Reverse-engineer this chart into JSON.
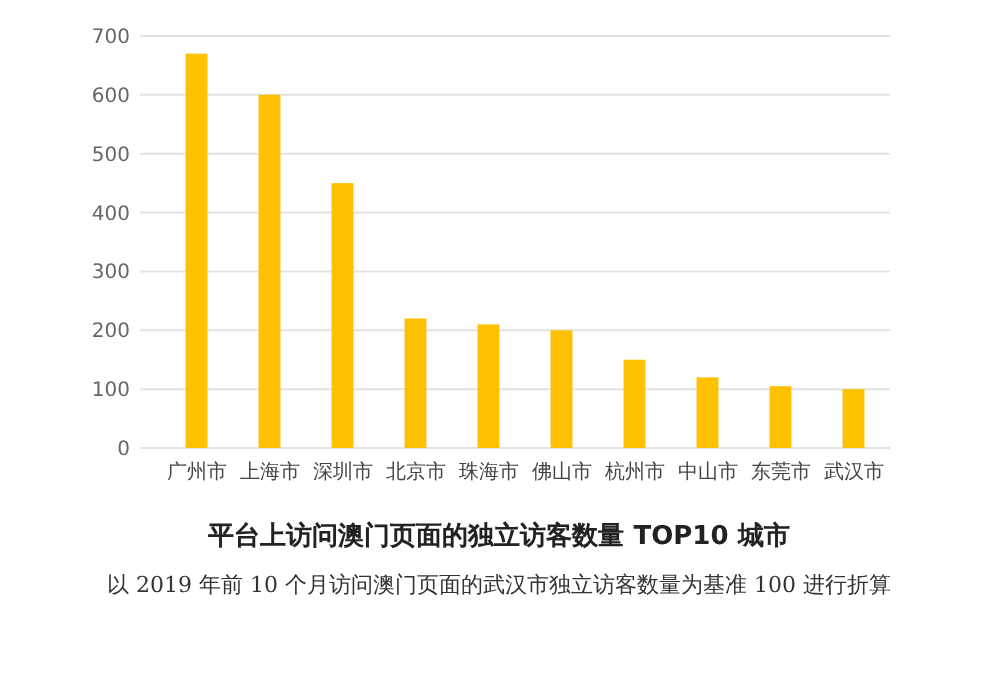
{
  "chart_data": {
    "type": "bar",
    "title": "平台上访问澳门页面的独立访客数量 TOP10 城市",
    "categories": [
      "广州市",
      "上海市",
      "深圳市",
      "北京市",
      "珠海市",
      "佛山市",
      "杭州市",
      "中山市",
      "东莞市",
      "武汉市"
    ],
    "values": [
      670,
      600,
      450,
      220,
      210,
      200,
      150,
      120,
      105,
      100
    ],
    "color": "#ffc000",
    "ylim": [
      0,
      700
    ],
    "yticks": [
      0,
      100,
      200,
      300,
      400,
      500,
      600,
      700
    ],
    "grid": "y",
    "annotations": [
      "以 2019 年前 10 个月访问澳门页面的武汉市独立访客数量为基准 100 进行折算"
    ]
  }
}
